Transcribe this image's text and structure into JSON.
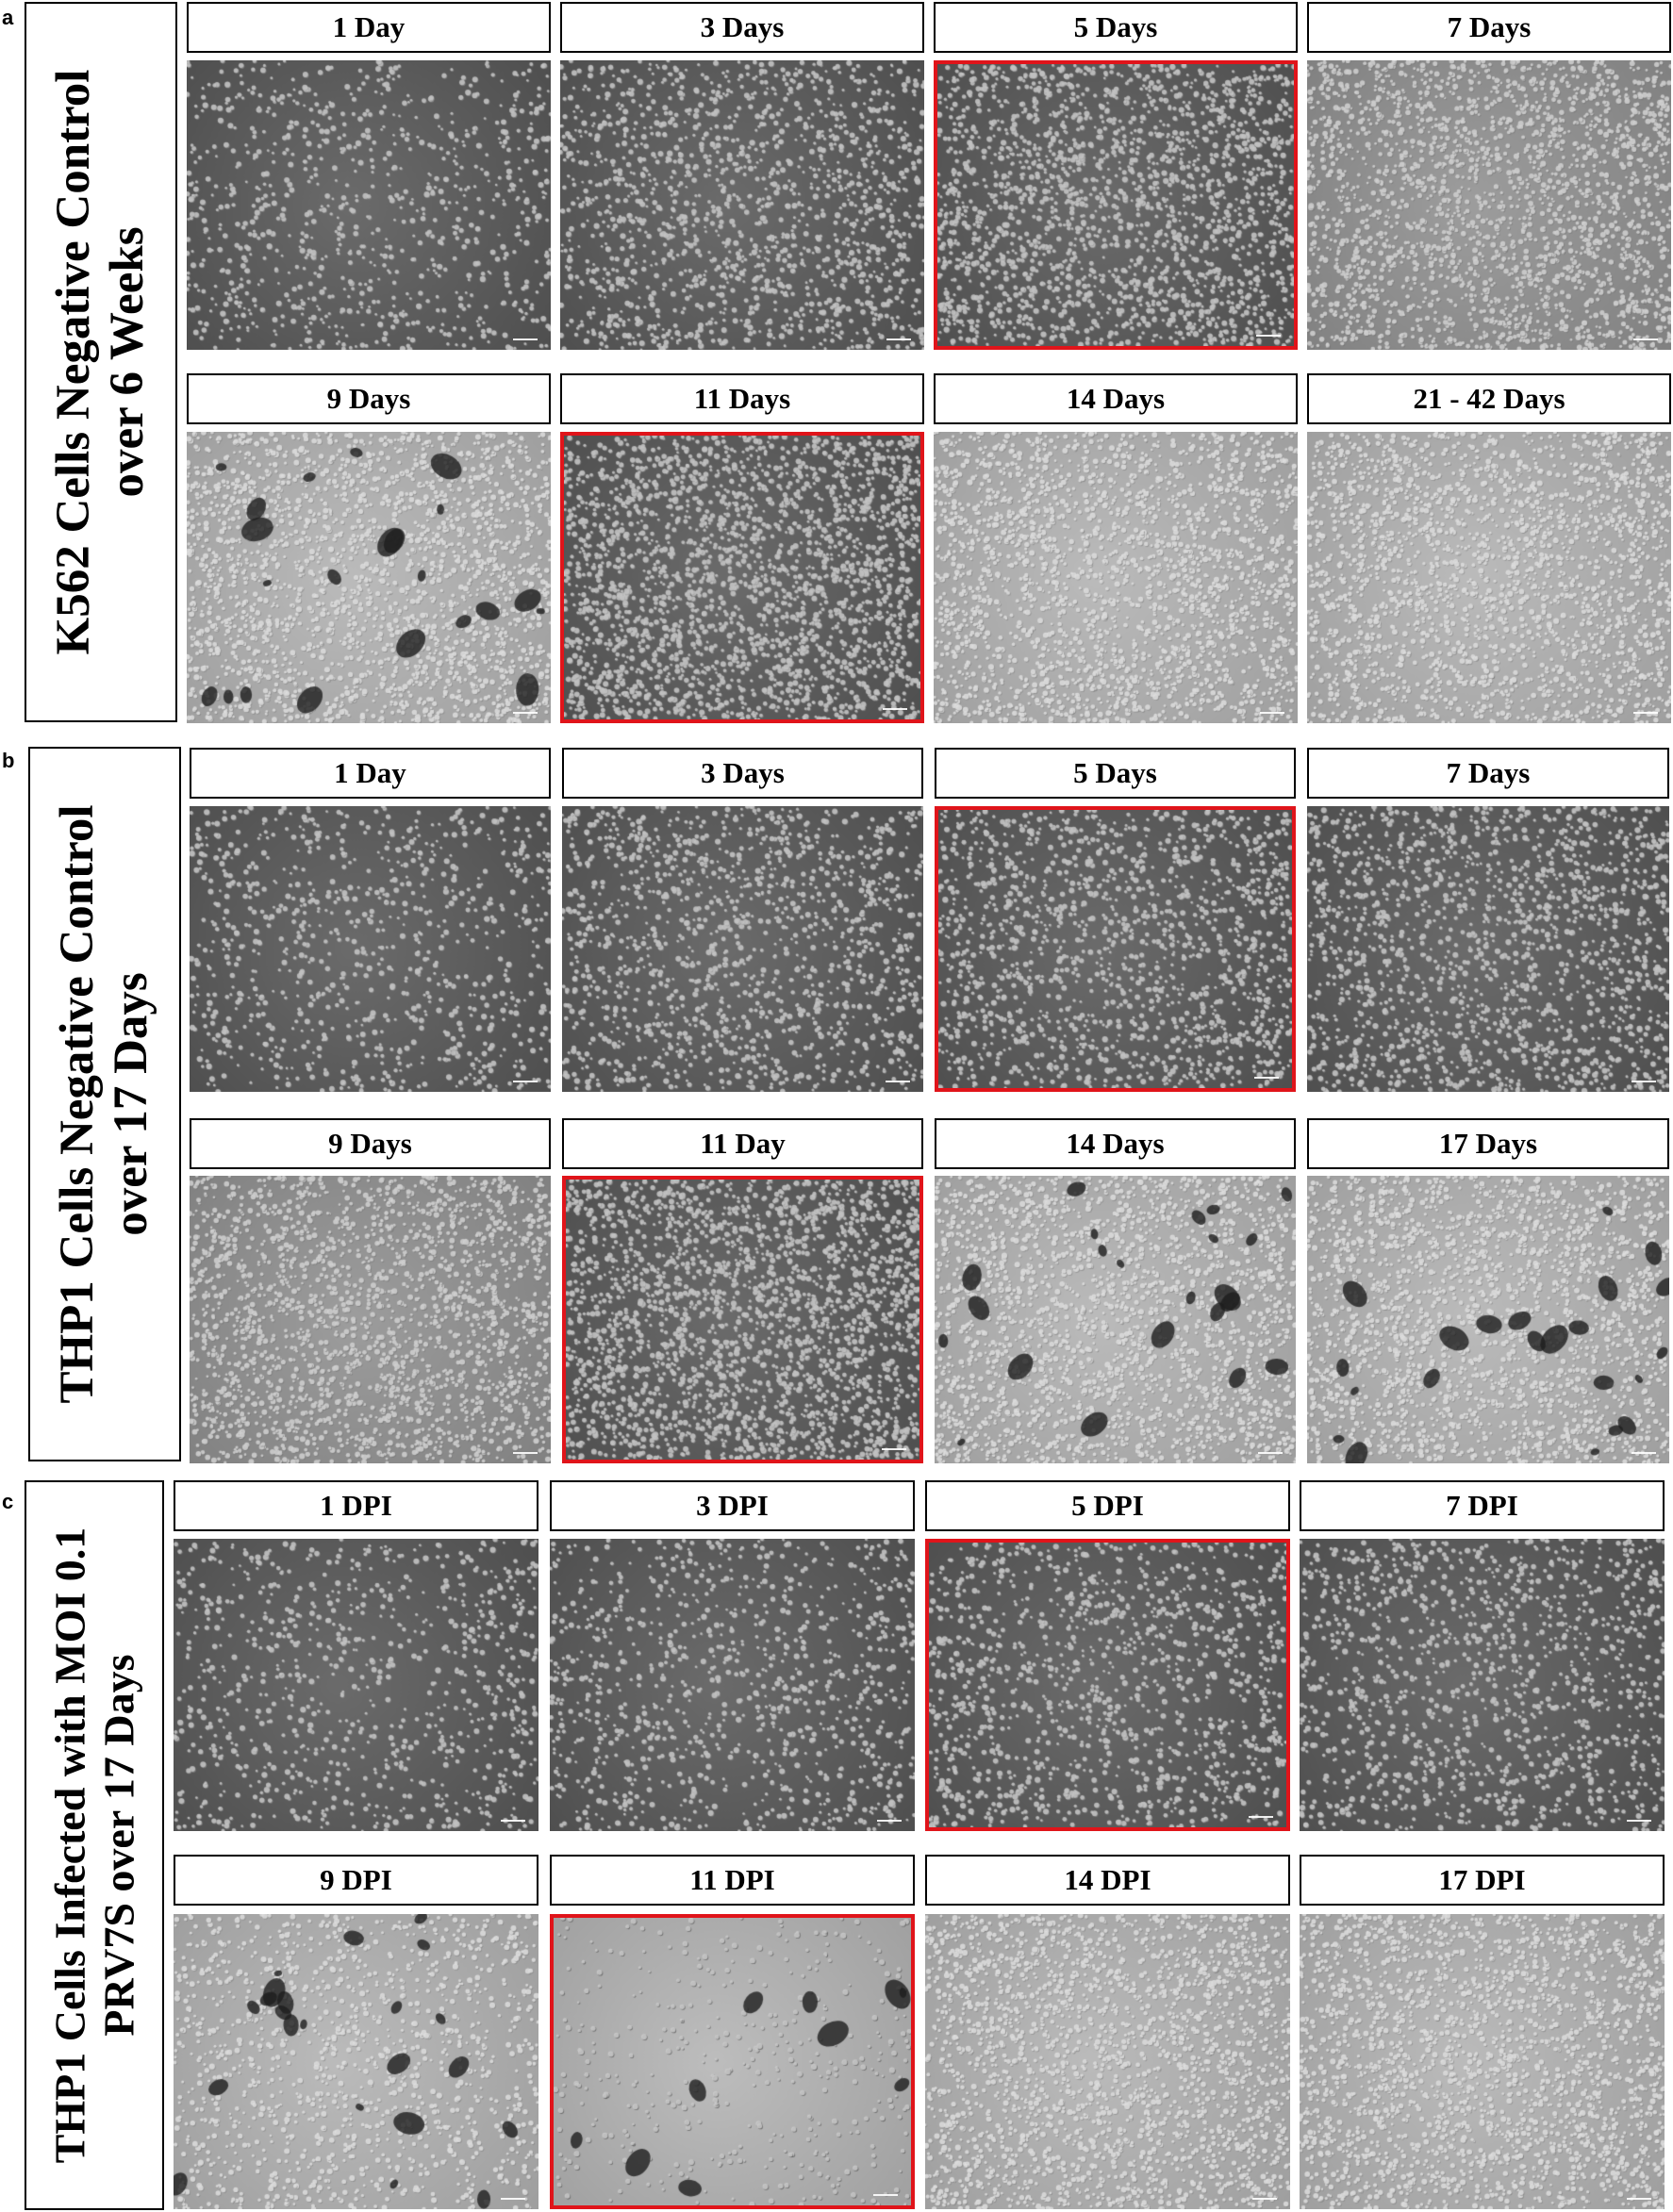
{
  "colors": {
    "highlight": "#e0141a",
    "border": "#000000"
  },
  "panels": [
    {
      "letter": "a",
      "side_lines": [
        "K562 Cells Negative Control",
        "over 6 Weeks"
      ],
      "rows": [
        [
          {
            "label": "1 Day",
            "highlighted": false,
            "tone": "dark",
            "density": 0.35
          },
          {
            "label": "3 Days",
            "highlighted": false,
            "tone": "dark",
            "density": 0.6
          },
          {
            "label": "5 Days",
            "highlighted": true,
            "tone": "dark",
            "density": 0.8
          },
          {
            "label": "7 Days",
            "highlighted": false,
            "tone": "mid",
            "density": 0.9
          }
        ],
        [
          {
            "label": "9 Days",
            "highlighted": false,
            "tone": "light",
            "density": 0.9
          },
          {
            "label": "11 Days",
            "highlighted": true,
            "tone": "dark",
            "density": 0.95
          },
          {
            "label": "14 Days",
            "highlighted": false,
            "tone": "light",
            "density": 0.9
          },
          {
            "label": "21 - 42 Days",
            "highlighted": false,
            "tone": "light",
            "density": 0.9
          }
        ]
      ]
    },
    {
      "letter": "b",
      "side_lines": [
        "THP1 Cells Negative Control",
        "over 17 Days"
      ],
      "rows": [
        [
          {
            "label": "1 Day",
            "highlighted": false,
            "tone": "dark",
            "density": 0.35
          },
          {
            "label": "3 Days",
            "highlighted": false,
            "tone": "dark",
            "density": 0.55
          },
          {
            "label": "5 Days",
            "highlighted": true,
            "tone": "dark",
            "density": 0.6
          },
          {
            "label": "7 Days",
            "highlighted": false,
            "tone": "dark",
            "density": 0.65
          }
        ],
        [
          {
            "label": "9 Days",
            "highlighted": false,
            "tone": "mid",
            "density": 0.85
          },
          {
            "label": "11 Day",
            "highlighted": true,
            "tone": "dark",
            "density": 0.95
          },
          {
            "label": "14 Days",
            "highlighted": false,
            "tone": "light",
            "density": 0.9
          },
          {
            "label": "17 Days",
            "highlighted": false,
            "tone": "light",
            "density": 0.9
          }
        ]
      ]
    },
    {
      "letter": "c",
      "side_lines": [
        "THP1 Cells Infected with MOI 0.1",
        "PRV7S over 17 Days"
      ],
      "rows": [
        [
          {
            "label": "1 DPI",
            "highlighted": false,
            "tone": "dark",
            "density": 0.35
          },
          {
            "label": "3 DPI",
            "highlighted": false,
            "tone": "dark",
            "density": 0.4
          },
          {
            "label": "5 DPI",
            "highlighted": true,
            "tone": "dark",
            "density": 0.5
          },
          {
            "label": "7 DPI",
            "highlighted": false,
            "tone": "dark",
            "density": 0.5
          }
        ],
        [
          {
            "label": "9 DPI",
            "highlighted": false,
            "tone": "light",
            "density": 0.5
          },
          {
            "label": "11 DPI",
            "highlighted": true,
            "tone": "pale",
            "density": 0.15
          },
          {
            "label": "14 DPI",
            "highlighted": false,
            "tone": "light",
            "density": 0.9
          },
          {
            "label": "17 DPI",
            "highlighted": false,
            "tone": "light",
            "density": 0.9
          }
        ]
      ]
    }
  ]
}
